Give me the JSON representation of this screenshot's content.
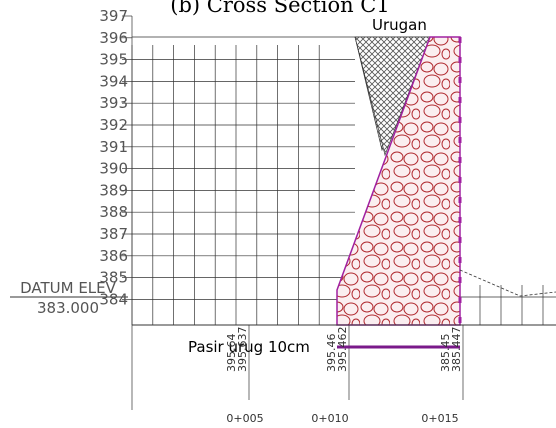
{
  "title": "(b) Cross Section C1",
  "elevation_labels": [
    "397",
    "396",
    "395",
    "394",
    "393",
    "392",
    "391",
    "390",
    "389",
    "388",
    "387",
    "386",
    "385",
    "384"
  ],
  "datum": {
    "label": "DATUM ELEV",
    "value": "383.000"
  },
  "annotations": {
    "fill": "Urugan",
    "base": "Pasir urug 10cm"
  },
  "ground_levels": [
    "395.64",
    "395.637",
    "395.46",
    "395.462",
    "385.45",
    "385.447"
  ],
  "stations": [
    "0+005",
    "0+010",
    "0+015"
  ]
}
